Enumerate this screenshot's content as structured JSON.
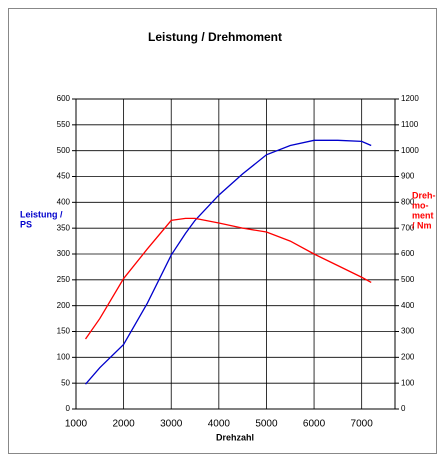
{
  "chart_data": {
    "type": "line",
    "title": "Leistung / Drehmoment",
    "xlabel": "Drehzahl",
    "ylabel_lines": [
      "Leistung /",
      "PS"
    ],
    "y2label_lines": [
      "Dreh-",
      "mo-",
      "ment",
      "/ Nm"
    ],
    "x": [
      1200,
      1500,
      2000,
      2500,
      3000,
      3300,
      3500,
      4000,
      4500,
      5000,
      5500,
      6000,
      6500,
      7000,
      7200
    ],
    "series": [
      {
        "name": "Leistung",
        "color": "#0000cc",
        "axis": "y",
        "values": [
          48,
          80,
          125,
          205,
          298,
          340,
          365,
          414,
          455,
          492,
          510,
          520,
          520,
          518,
          510
        ]
      },
      {
        "name": "Drehmoment",
        "color": "#ff0000",
        "axis": "y2",
        "values": [
          271,
          350,
          505,
          620,
          730,
          738,
          738,
          720,
          700,
          685,
          650,
          600,
          555,
          510,
          490
        ]
      }
    ],
    "xlim": [
      1000,
      7700
    ],
    "xticks": [
      1000,
      2000,
      3000,
      4000,
      5000,
      6000,
      7000
    ],
    "ylim": [
      0,
      600
    ],
    "yticks": [
      0,
      50,
      100,
      150,
      200,
      250,
      300,
      350,
      400,
      450,
      500,
      550,
      600
    ],
    "y2lim": [
      0,
      1200
    ],
    "y2ticks": [
      0,
      100,
      200,
      300,
      400,
      500,
      600,
      700,
      800,
      900,
      1000,
      1100,
      1200
    ],
    "ylabel_color": "#0000cc",
    "y2label_color": "#ff0000",
    "grid": true
  }
}
